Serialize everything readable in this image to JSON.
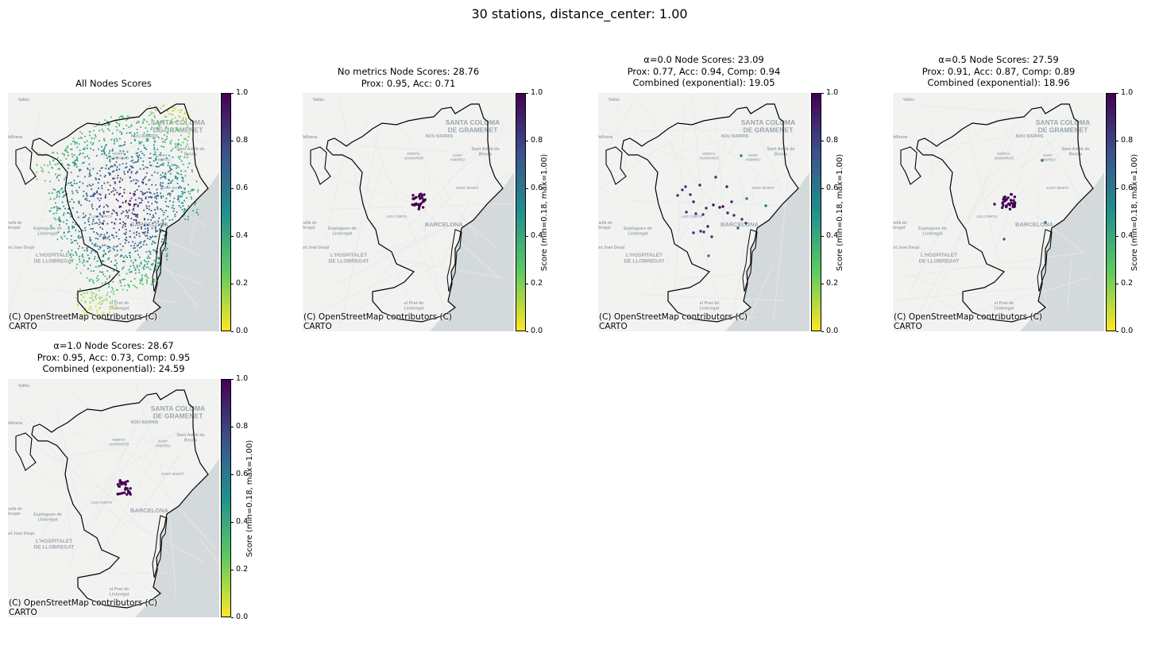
{
  "suptitle": "30 stations, distance_center: 1.00",
  "basemap_labels": {
    "santa_coloma": "SANTA COLOMA\nDE GRAMENET",
    "nou_barris": "NOU BARRIS",
    "sant_adria": "Sant Adrià de\nBesòs",
    "horta": "HORTA-\nGUINARDÓ",
    "sant_andreu": "SANT\nANDREU",
    "sant_marti": "SANT MARTÍ",
    "barcelona": "BARCELONA",
    "les_corts": "LES CORTS",
    "esplugues": "Esplugues de\nLlobregat",
    "sant_joan": "Sant Joan Despí",
    "hospitalet": "L'HOSPITALET\nDE LLOBREGAT",
    "prat": "el Prat de\nLlobregat",
    "vallirana": "Vallirana",
    "valles": "Vallès",
    "cornella": "Cornellà de\nLlobregat"
  },
  "panels": [
    {
      "title": "All Nodes Scores",
      "attribution": "(C) OpenStreetMap contributors (C)\nCARTO",
      "colorbar_ticks": [
        "1.0",
        "0.8",
        "0.6",
        "0.4",
        "0.2",
        "0.0"
      ],
      "colorbar_label": ""
    },
    {
      "title": "No metrics Node Scores: 28.76\nProx: 0.95, Acc: 0.71",
      "attribution": "(C) OpenStreetMap contributors (C)\nCARTO",
      "colorbar_ticks": [
        "1.0",
        "0.8",
        "0.6",
        "0.4",
        "0.2",
        "0.0"
      ],
      "colorbar_label": "Score (min=0.18, max=1.00)"
    },
    {
      "title": "α=0.0 Node Scores: 23.09\nProx: 0.77, Acc: 0.94, Comp: 0.94\nCombined (exponential): 19.05",
      "attribution": "(C) OpenStreetMap contributors (C)\nCARTO",
      "colorbar_ticks": [
        "1.0",
        "0.8",
        "0.6",
        "0.4",
        "0.2",
        "0.0"
      ],
      "colorbar_label": "Score (min=0.18, max=1.00)"
    },
    {
      "title": "α=0.5 Node Scores: 27.59\nProx: 0.91, Acc: 0.87, Comp: 0.89\nCombined (exponential): 18.96",
      "attribution": "(C) OpenStreetMap contributors (C)\nCARTO",
      "colorbar_ticks": [
        "1.0",
        "0.8",
        "0.6",
        "0.4",
        "0.2",
        "0.0"
      ],
      "colorbar_label": "Score (min=0.18, max=1.00)"
    },
    {
      "title": "α=1.0 Node Scores: 28.67\nProx: 0.95, Acc: 0.73, Comp: 0.95\nCombined (exponential): 24.59",
      "attribution": "(C) OpenStreetMap contributors (C)\nCARTO",
      "colorbar_ticks": [
        "1.0",
        "0.8",
        "0.6",
        "0.4",
        "0.2",
        "0.0"
      ],
      "colorbar_label": "Score (min=0.18, max=1.00)"
    }
  ],
  "colors": {
    "viridis": [
      "#fde725",
      "#5ec962",
      "#21918c",
      "#3b528b",
      "#440154"
    ],
    "sea": "#d4dadc",
    "land": "#f2f3f1",
    "boundary": "#000000"
  }
}
